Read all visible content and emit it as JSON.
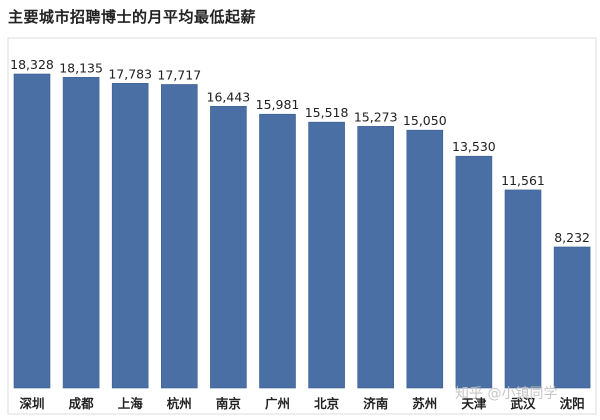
{
  "colors": {
    "bar": "#4a6fa5",
    "bar_edge": "#3d5f8f",
    "label": "#222222",
    "frame": "#dddddd",
    "watermark": "#c0c0c0"
  },
  "watermark": {
    "site": "知乎",
    "author": "@小镇同学"
  },
  "chart_data": {
    "type": "bar",
    "title": "主要城市招聘博士的月平均最低起薪",
    "categories": [
      "深圳",
      "成都",
      "上海",
      "杭州",
      "南京",
      "广州",
      "北京",
      "济南",
      "苏州",
      "天津",
      "武汉",
      "沈阳"
    ],
    "values": [
      18328,
      18135,
      17783,
      17717,
      16443,
      15981,
      15518,
      15273,
      15050,
      13530,
      11561,
      8232
    ],
    "value_labels": [
      "18,328",
      "18,135",
      "17,783",
      "17,717",
      "16,443",
      "15,981",
      "15,518",
      "15,273",
      "15,050",
      "13,530",
      "11,561",
      "8,232"
    ],
    "xlabel": "",
    "ylabel": "",
    "ylim": [
      0,
      18328
    ],
    "grid": false,
    "legend": "none"
  }
}
